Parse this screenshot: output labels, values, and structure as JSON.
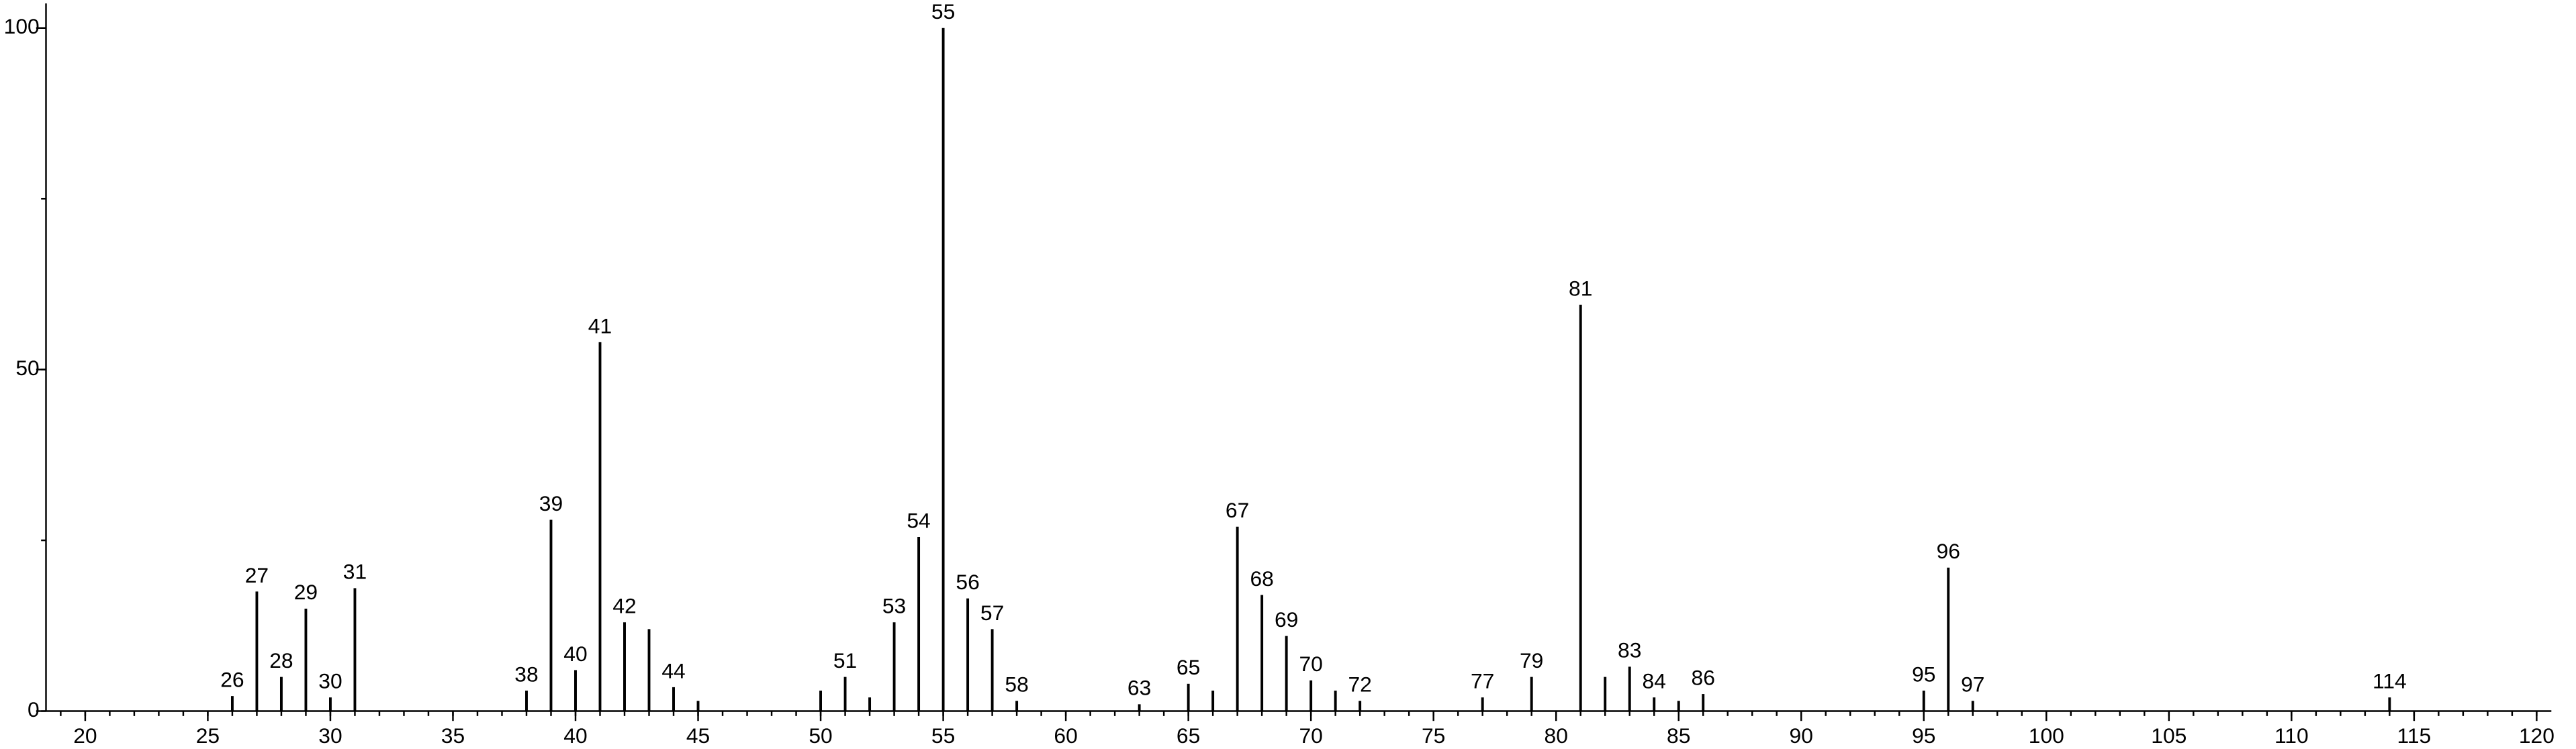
{
  "chart_data": {
    "type": "stick",
    "x": [
      26,
      27,
      28,
      29,
      30,
      31,
      38,
      39,
      40,
      41,
      42,
      43,
      44,
      45,
      50,
      51,
      52,
      53,
      54,
      55,
      56,
      57,
      58,
      63,
      65,
      66,
      67,
      68,
      69,
      70,
      71,
      72,
      77,
      79,
      81,
      82,
      83,
      84,
      85,
      86,
      95,
      96,
      97,
      114
    ],
    "values": [
      2.2,
      17.5,
      5,
      15,
      2,
      18,
      3,
      28,
      6,
      54,
      13,
      12,
      3.5,
      1.5,
      3,
      5,
      2,
      13,
      25.5,
      100,
      16.5,
      12,
      1.5,
      1,
      4,
      3,
      27,
      17,
      11,
      4.5,
      3,
      1.5,
      2,
      5,
      59.5,
      5,
      6.5,
      2,
      1.5,
      2.5,
      3,
      21,
      1.5,
      2
    ],
    "peak_labels": [
      "26",
      "27",
      "28",
      "29",
      "30",
      "31",
      "38",
      "39",
      "40",
      "41",
      "42",
      null,
      "44",
      null,
      null,
      "51",
      null,
      "53",
      "54",
      "55",
      "56",
      "57",
      "58",
      "63",
      "65",
      null,
      "67",
      "68",
      "69",
      "70",
      null,
      "72",
      "77",
      "79",
      "81",
      null,
      "83",
      "84",
      null,
      "86",
      "95",
      "96",
      "97",
      "114"
    ],
    "color": "#000000",
    "xlim": [
      18.4,
      120.6
    ],
    "xticks": [
      20,
      25,
      30,
      35,
      40,
      45,
      50,
      55,
      60,
      65,
      70,
      75,
      80,
      85,
      90,
      95,
      100,
      105,
      110,
      115,
      120
    ],
    "xminor_step": 1,
    "ylim": [
      0,
      103.6
    ],
    "yticks": [
      0,
      50,
      100
    ],
    "yminor_step": 25
  }
}
